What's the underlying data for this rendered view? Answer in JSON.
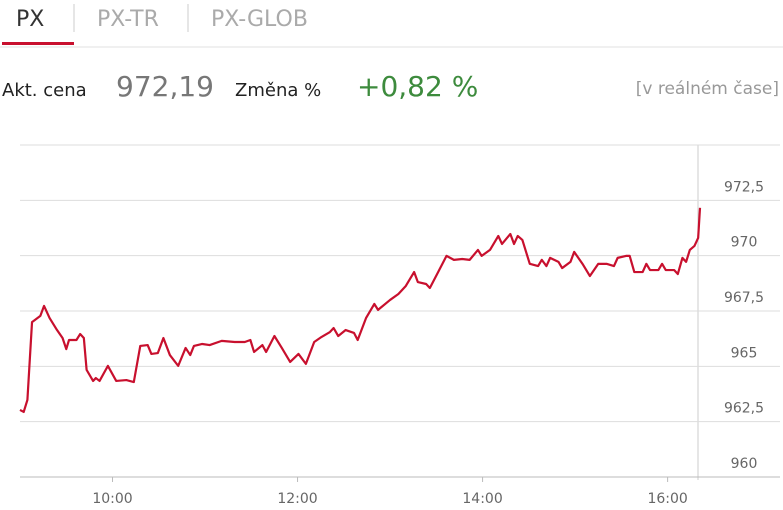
{
  "tabs": [
    {
      "label": "PX",
      "active": true
    },
    {
      "label": "PX-TR",
      "active": false
    },
    {
      "label": "PX-GLOB",
      "active": false
    }
  ],
  "quote": {
    "price_label": "Akt. cena",
    "price": "972,19",
    "change_label": "Změna %",
    "change": "+0,82 %",
    "note": "[v reálném čase]"
  },
  "chart_data": {
    "type": "line",
    "color": "#c8102e",
    "grid": true,
    "x": [
      9.0,
      9.04,
      9.08,
      9.13,
      9.22,
      9.26,
      9.32,
      9.4,
      9.46,
      9.5,
      9.53,
      9.61,
      9.65,
      9.69,
      9.72,
      9.79,
      9.82,
      9.86,
      9.95,
      10.04,
      10.15,
      10.23,
      10.3,
      10.38,
      10.42,
      10.49,
      10.55,
      10.62,
      10.71,
      10.79,
      10.84,
      10.88,
      10.97,
      11.05,
      11.18,
      11.32,
      11.43,
      11.49,
      11.53,
      11.62,
      11.66,
      11.75,
      11.83,
      11.92,
      12.01,
      12.09,
      12.18,
      12.26,
      12.35,
      12.39,
      12.44,
      12.52,
      12.61,
      12.65,
      12.74,
      12.83,
      12.87,
      13.0,
      13.09,
      13.17,
      13.26,
      13.3,
      13.39,
      13.43,
      13.52,
      13.61,
      13.69,
      13.78,
      13.86,
      13.95,
      13.99,
      14.08,
      14.17,
      14.21,
      14.3,
      14.34,
      14.38,
      14.43,
      14.51,
      14.6,
      14.64,
      14.69,
      14.73,
      14.82,
      14.86,
      14.95,
      14.99,
      15.08,
      15.16,
      15.25,
      15.34,
      15.42,
      15.46,
      15.55,
      15.59,
      15.64,
      15.73,
      15.77,
      15.81,
      15.9,
      15.94,
      15.98,
      16.07,
      16.11,
      16.16,
      16.2,
      16.24,
      16.29,
      16.33,
      16.35
    ],
    "values": [
      963.03,
      962.94,
      963.48,
      967.0,
      967.28,
      967.73,
      967.18,
      966.64,
      966.28,
      965.78,
      966.19,
      966.19,
      966.46,
      966.28,
      964.84,
      964.34,
      964.47,
      964.34,
      965.02,
      964.34,
      964.38,
      964.29,
      965.92,
      965.96,
      965.56,
      965.6,
      966.28,
      965.51,
      965.02,
      965.83,
      965.51,
      965.92,
      966.01,
      965.96,
      966.15,
      966.1,
      966.1,
      966.19,
      965.65,
      965.96,
      965.65,
      966.37,
      965.83,
      965.2,
      965.56,
      965.11,
      966.1,
      966.33,
      966.55,
      966.73,
      966.37,
      966.64,
      966.51,
      966.19,
      967.18,
      967.82,
      967.55,
      968.0,
      968.27,
      968.63,
      969.26,
      968.81,
      968.72,
      968.54,
      969.26,
      969.99,
      969.81,
      969.85,
      969.81,
      970.26,
      969.99,
      970.26,
      970.89,
      970.53,
      970.98,
      970.53,
      970.89,
      970.71,
      969.63,
      969.53,
      969.81,
      969.53,
      969.9,
      969.72,
      969.44,
      969.72,
      970.17,
      969.63,
      969.08,
      969.63,
      969.63,
      969.53,
      969.9,
      969.99,
      969.99,
      969.26,
      969.26,
      969.63,
      969.35,
      969.35,
      969.63,
      969.35,
      969.35,
      969.17,
      969.9,
      969.72,
      970.26,
      970.44,
      970.8,
      972.16
    ],
    "xlim": [
      9,
      16.35
    ],
    "xticks": [
      {
        "value": 10,
        "label": "10:00"
      },
      {
        "value": 12,
        "label": "12:00"
      },
      {
        "value": 14,
        "label": "14:00"
      },
      {
        "value": 16,
        "label": "16:00"
      }
    ],
    "ylim": [
      960,
      975
    ],
    "yticks": [
      960,
      {
        "value": 962.5,
        "label": "962,5"
      },
      965,
      {
        "value": 967.5,
        "label": "967,5"
      },
      970,
      {
        "value": 972.5,
        "label": "972,5"
      }
    ]
  }
}
